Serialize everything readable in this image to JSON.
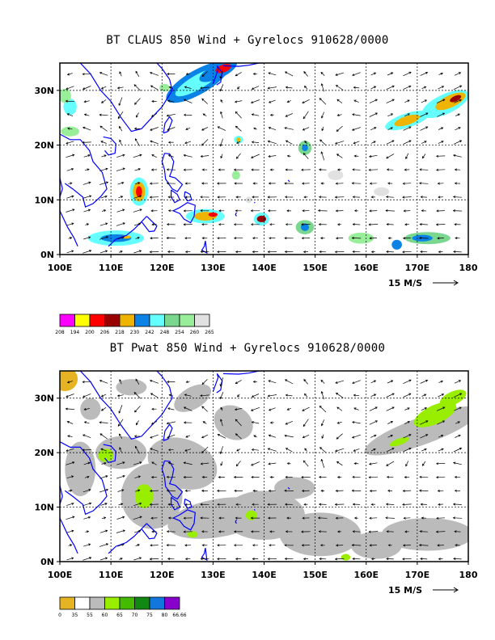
{
  "panels": [
    {
      "title": "BT CLAUS 850 Wind + Gyrelocs 910628/0000",
      "field": "CLAUS brightness temperature",
      "colorbar_labels": [
        "208",
        "194",
        "200",
        "206",
        "218",
        "230",
        "242",
        "248",
        "254",
        "260",
        "265"
      ],
      "colorbar_colors": [
        "#ff00ff",
        "#ffff00",
        "#ff0000",
        "#990000",
        "#eeb400",
        "#0a82e6",
        "#66ffff",
        "#7ad78f",
        "#99ee99",
        "#e1e1e1"
      ]
    },
    {
      "title": "BT Pwat 850 Wind + Gyrelocs 910628/0000",
      "field": "precipitable water",
      "colorbar_labels": [
        "0",
        "35",
        "55",
        "60",
        "65",
        "70",
        "75",
        "80",
        "66.66"
      ],
      "colorbar_colors": [
        "#e6b422",
        "#ffffff",
        "#bbbbbb",
        "#99ee00",
        "#44bb00",
        "#118811",
        "#1177dd",
        "#8800cc"
      ]
    }
  ],
  "axes": {
    "lon_labels": [
      "100E",
      "110E",
      "120E",
      "130E",
      "140E",
      "150E",
      "160E",
      "170E",
      "180"
    ],
    "lat_labels": [
      "30N",
      "20N",
      "10N",
      "0N"
    ],
    "lon_range": [
      100,
      180
    ],
    "lat_range": [
      0,
      35
    ]
  },
  "reference_vector": {
    "label": "15 M/S"
  },
  "colors": {
    "coastline": "#0000ff",
    "frame": "#000000",
    "grid": "#000000"
  }
}
